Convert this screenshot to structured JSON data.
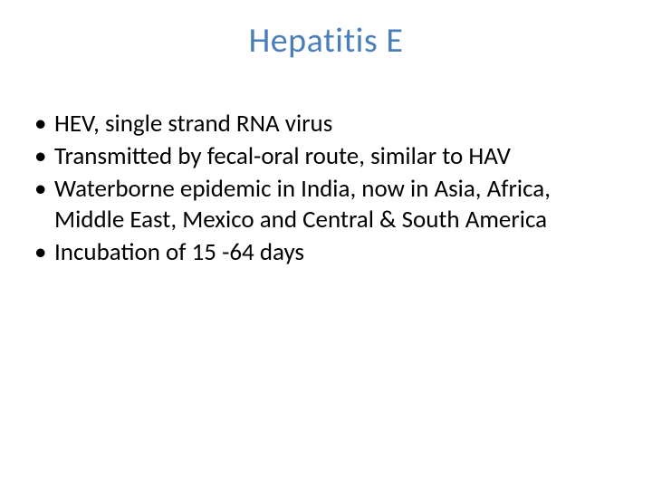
{
  "slide": {
    "title": "Hepatitis E",
    "title_color": "#4a7ebb",
    "title_fontsize": 38,
    "title_fontweight": 400,
    "body_color": "#000000",
    "body_fontsize": 27,
    "body_lineheight": 34,
    "bullet_color": "#000000",
    "background_color": "#ffffff",
    "bullets": [
      "HEV, single strand RNA virus",
      "Transmitted by fecal-oral route, similar to HAV",
      "Waterborne epidemic in India, now in Asia, Africa, Middle East, Mexico and Central & South America",
      "Incubation of 15 -64 days"
    ]
  }
}
